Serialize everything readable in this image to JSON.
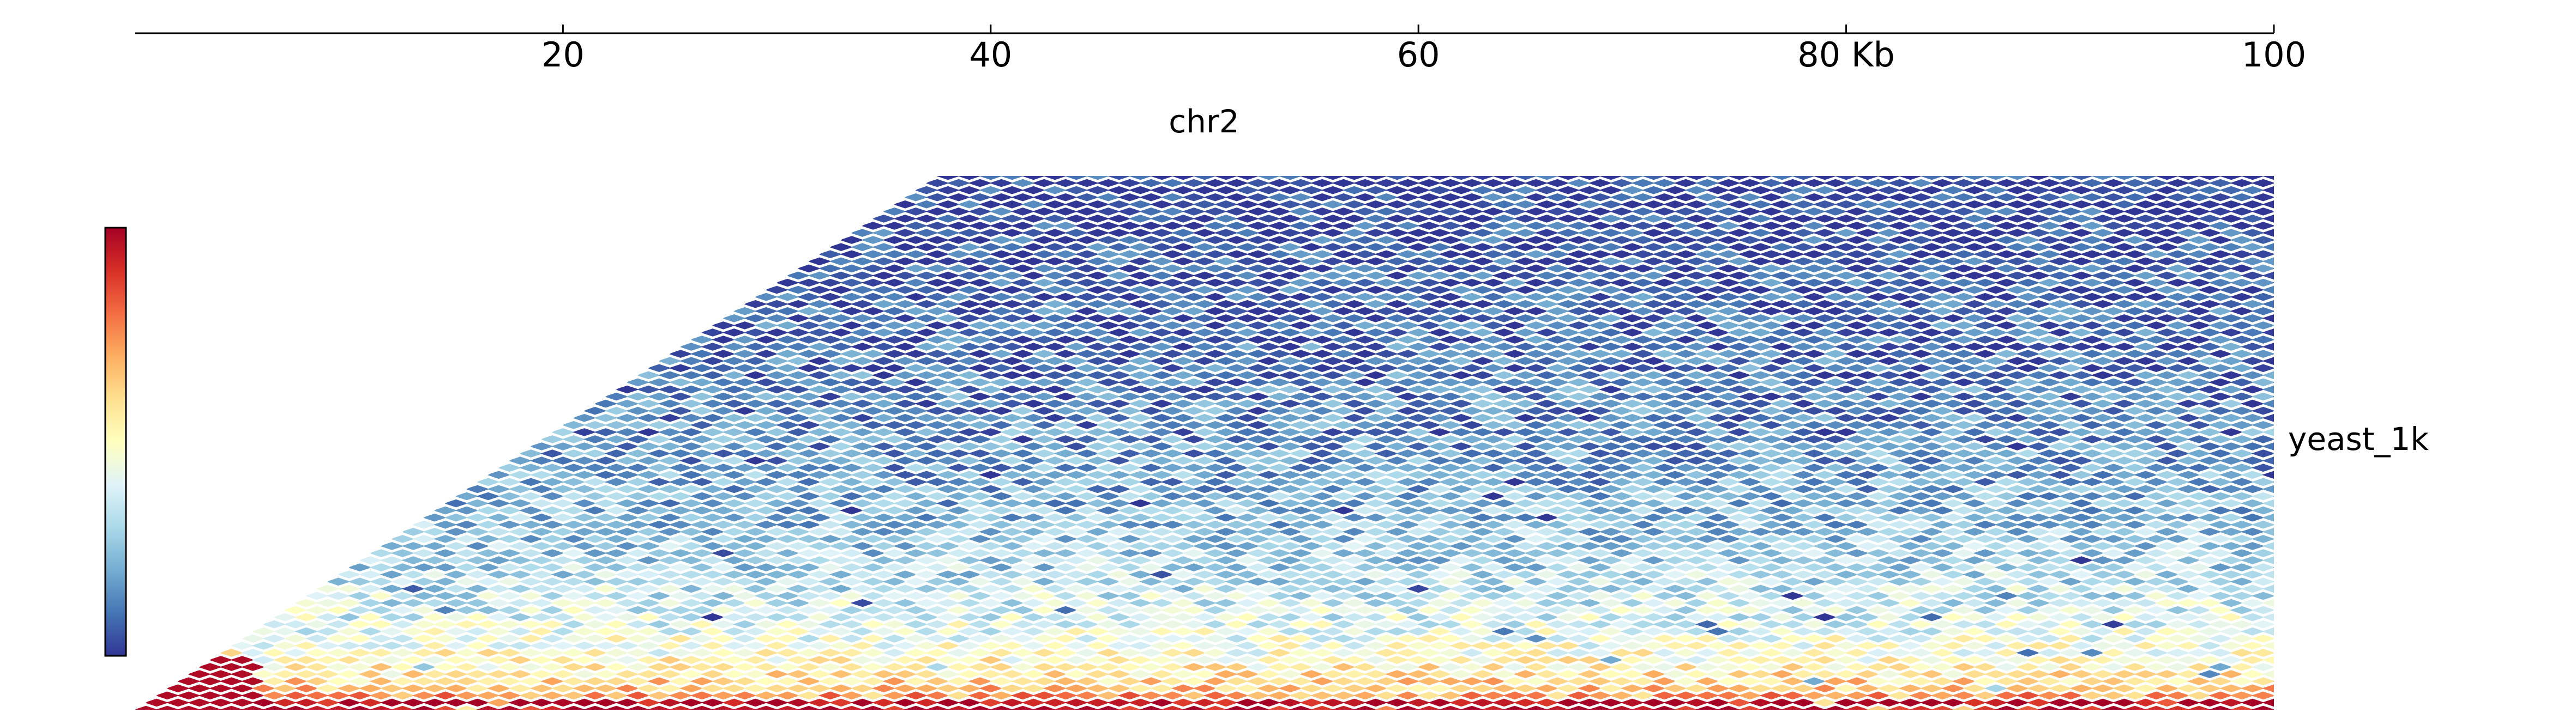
{
  "chart_data": {
    "type": "heatmap",
    "title": "",
    "chromosome": "chr2",
    "track_label": "yeast_1k",
    "xlim": [
      0,
      100
    ],
    "x_unit": "Kb",
    "ticks": [
      {
        "value": 20,
        "label": "20"
      },
      {
        "value": 40,
        "label": "40"
      },
      {
        "value": 60,
        "label": "60"
      },
      {
        "value": 80,
        "label": "80 Kb"
      },
      {
        "value": 100,
        "label": "100"
      }
    ],
    "max_depth_kb": 75,
    "bin_kb": 1,
    "colormap": "RdYlBu_r",
    "colormap_stops": [
      "#313695",
      "#4575b4",
      "#74add1",
      "#abd9e9",
      "#e0f3f8",
      "#ffffbf",
      "#fee090",
      "#fdae61",
      "#f46d43",
      "#d73027",
      "#a50026"
    ],
    "colorbar": {
      "orientation": "vertical",
      "position": "left",
      "tick_labels_visible": false
    },
    "legend": "none"
  }
}
